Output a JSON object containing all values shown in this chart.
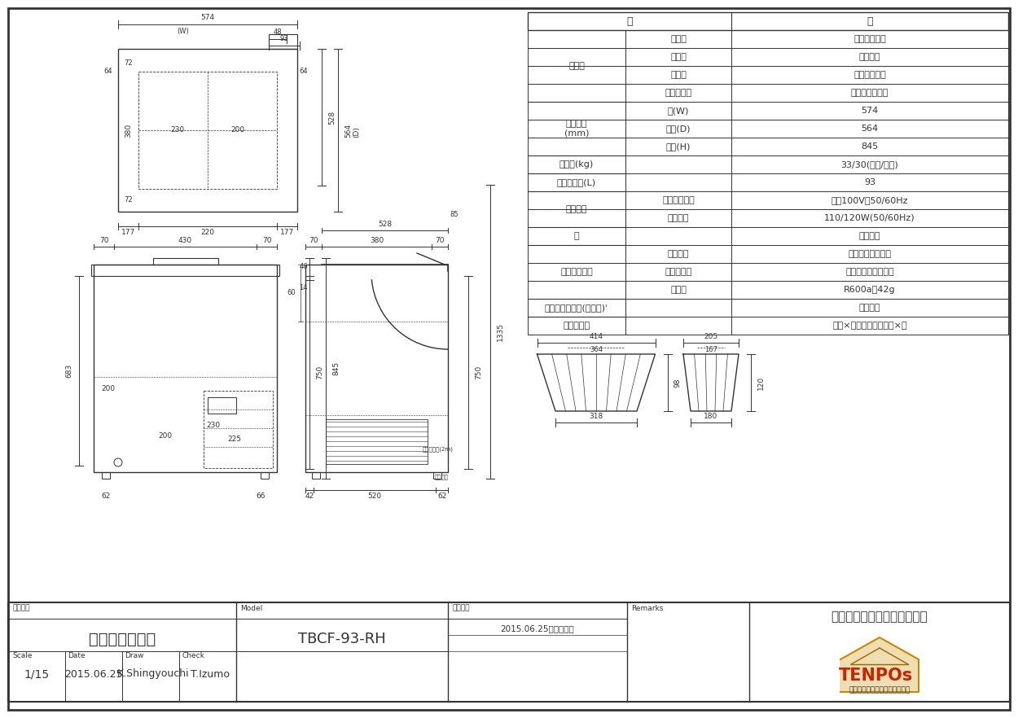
{
  "bg_color": "#ffffff",
  "line_color": "#333333",
  "spec_rows": [
    {
      "c0": "材　質",
      "c0r": 4,
      "c1": "外　装",
      "c2": "冷間圧延鋼板"
    },
    {
      "c0": "",
      "c0r": 0,
      "c1": "内　装",
      "c2": "塗装鋼板"
    },
    {
      "c0": "",
      "c0r": 0,
      "c1": "フ　タ",
      "c2": "冷間圧延鋼板"
    },
    {
      "c0": "",
      "c0r": 0,
      "c1": "断　熱　材",
      "c2": "シクロペンタン"
    },
    {
      "c0": "外形寸法\n(mm)",
      "c0r": 3,
      "c1": "幅(W)",
      "c2": "574"
    },
    {
      "c0": "",
      "c0r": 0,
      "c1": "奥行(D)",
      "c2": "564"
    },
    {
      "c0": "",
      "c0r": 0,
      "c1": "高さ(H)",
      "c2": "845"
    },
    {
      "c0": "重　量(kg)",
      "c0r": 1,
      "c1": "",
      "c2": "33/30(梱包/本体)"
    },
    {
      "c0": "定格内容量(L)",
      "c0r": 1,
      "c1": "",
      "c2": "93"
    },
    {
      "c0": "電気定格",
      "c0r": 2,
      "c1": "電圧・周波数",
      "c2": "単相100V・50/60Hz"
    },
    {
      "c0": "",
      "c0r": 0,
      "c1": "消費電力",
      "c2": "110/120W(50/60Hz)"
    },
    {
      "c0": "色",
      "c0r": 1,
      "c1": "",
      "c2": "ホワイト"
    },
    {
      "c0": "冷凍サイクル",
      "c0r": 3,
      "c1": "冷却方式",
      "c2": "冷気自然対流方式"
    },
    {
      "c0": "",
      "c0r": 0,
      "c1": "霜取り機能",
      "c2": "手動開始・手動終了"
    },
    {
      "c0": "",
      "c0r": 0,
      "c1": "冷　媒",
      "c2": "R600a　42g"
    },
    {
      "c0": "コンプレッサー(圧縮機)ʾ",
      "c0r": 1,
      "c1": "",
      "c2": "全密閉式"
    },
    {
      "c0": "付　属　品",
      "c0r": 1,
      "c1": "",
      "c2": "ヘラ×１、排水キャップ×１"
    }
  ],
  "footer": {
    "product_name_label": "商品名称",
    "product_name": "冷凍ストッカー",
    "model_label": "Model",
    "model": "TBCF-93-RH",
    "history_label": "変更履歴",
    "history_entry": "2015.06.25　新規作成",
    "remarks_label": "Remarks",
    "company": "株式会社テンポスバスターズ",
    "scale_label": "Scale",
    "scale": "1/15",
    "date_label": "Date",
    "date": "2015.06.25",
    "draw_label": "Draw",
    "draw": "K.Shingyouchi",
    "check_label": "Check",
    "check": "T.Izumo",
    "tenpos_sub": "フードビジネスプロデューサー"
  }
}
